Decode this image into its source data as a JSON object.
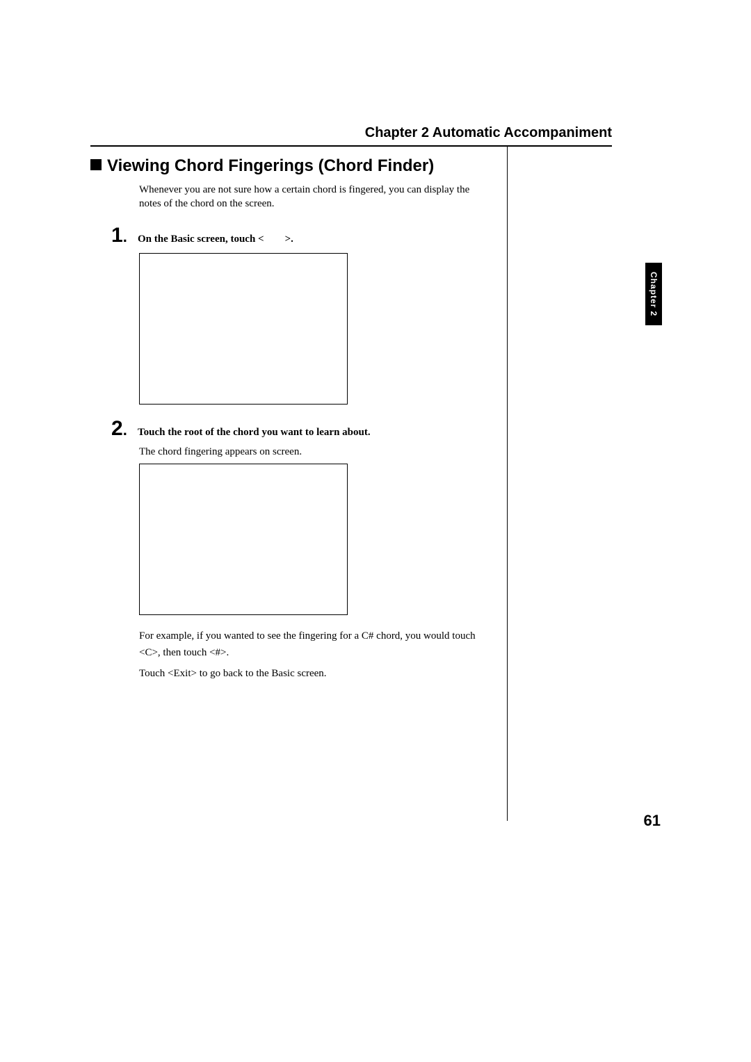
{
  "chapter_header": "Chapter 2 Automatic Accompaniment",
  "section_title": "Viewing Chord Fingerings (Chord Finder)",
  "intro": "Whenever you are not sure how a certain chord is fingered, you can display the notes of the chord on the screen.",
  "steps": [
    {
      "num": "1",
      "text": "On the Basic screen, touch <  >."
    },
    {
      "num": "2",
      "text": "Touch the root of the chord you want to learn about.",
      "sub": "The chord fingering appears on screen."
    }
  ],
  "para1": "For example, if you wanted to see the fingering for a C# chord, you would touch <C>, then touch <#>.",
  "para2": "Touch <Exit> to go back to the Basic screen.",
  "side_tab": "Chapter 2",
  "page_number": "61",
  "colors": {
    "text": "#000000",
    "background": "#ffffff",
    "tab_bg": "#000000",
    "tab_fg": "#ffffff"
  }
}
